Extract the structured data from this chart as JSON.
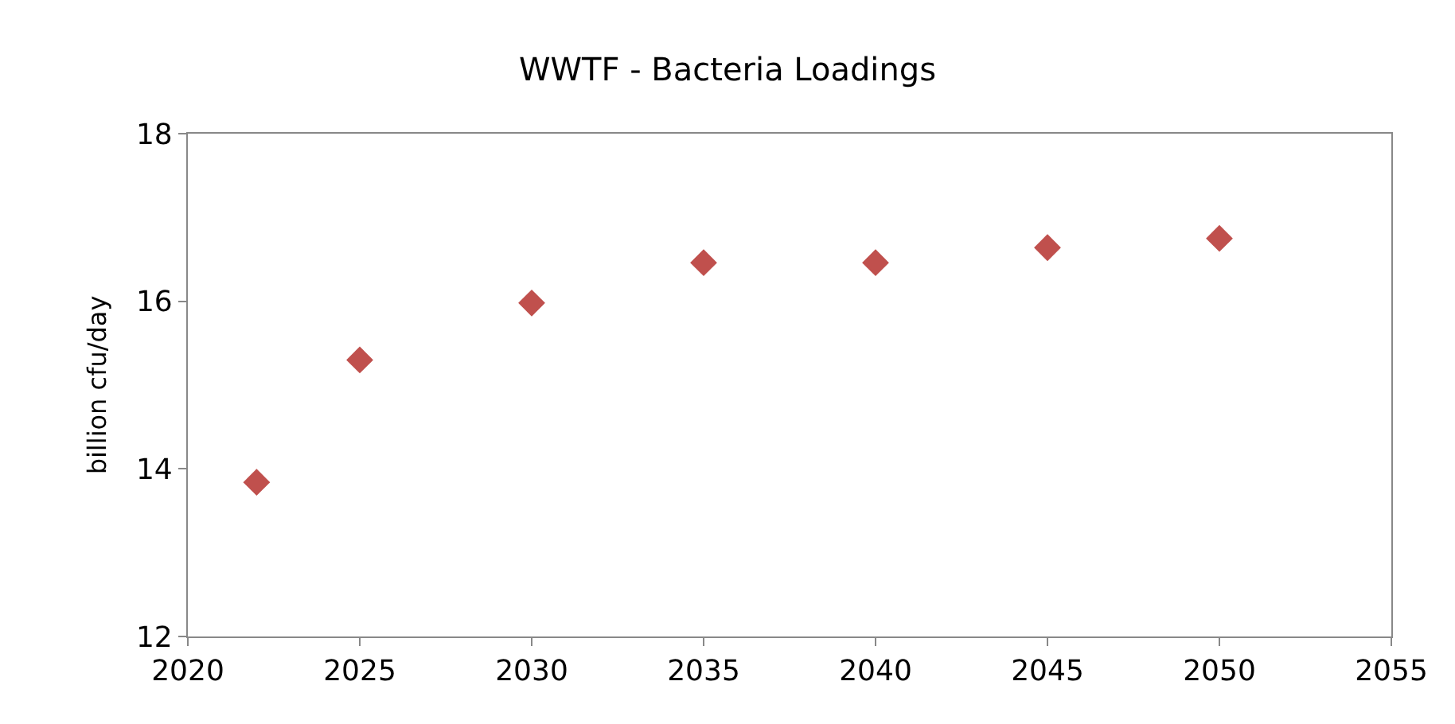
{
  "chart_data": {
    "type": "scatter",
    "title": "WWTF - Bacteria Loadings",
    "ylabel": "billion cfu/day",
    "x": [
      2022,
      2025,
      2030,
      2035,
      2040,
      2045,
      2050
    ],
    "series": [
      {
        "color": "#c0504d",
        "values": [
          13.84,
          15.3,
          15.98,
          16.46,
          16.46,
          16.64,
          16.75
        ]
      }
    ],
    "xlim": [
      2020,
      2055
    ],
    "xticks": [
      2020,
      2025,
      2030,
      2035,
      2040,
      2045,
      2050,
      2055
    ],
    "ylim": [
      12,
      18
    ],
    "yticks": [
      12,
      14,
      16,
      18
    ],
    "grid": false,
    "marker": "diamond"
  }
}
